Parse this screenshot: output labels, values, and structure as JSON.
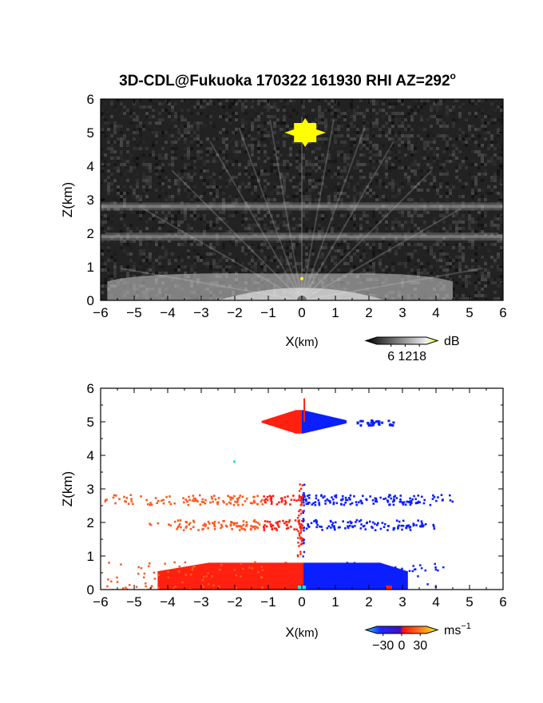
{
  "title": "3D-CDL@Fukuoka 170322 161930 RHI AZ=292",
  "title_superscript": "o",
  "colors": {
    "background": "#ffffff",
    "reflectivity_bg": "#222222",
    "strong_echo": "#ffff00",
    "approaching": "#0a1eff",
    "receding": "#ff2010",
    "receding_light": "#ff5a1e",
    "near_zero": "#19e6f0"
  },
  "chart_data": [
    {
      "type": "heatmap",
      "panel": "top",
      "quantity": "signal intensity",
      "xlabel_main": "X",
      "xlabel_unit": "(km)",
      "ylabel": "Z(km)",
      "xlim": [
        -6,
        6
      ],
      "ylim": [
        0,
        6
      ],
      "x_ticks": [
        "-6",
        "-5",
        "-4",
        "-3",
        "-2",
        "-1",
        "0",
        "1",
        "2",
        "3",
        "4",
        "5",
        "6"
      ],
      "y_ticks": [
        "0",
        "1",
        "2",
        "3",
        "4",
        "5",
        "6"
      ],
      "colorbar": {
        "unit": "dB",
        "ticks": [
          "6",
          "12",
          "18"
        ],
        "tick_values": [
          6,
          12,
          18
        ],
        "range": [
          0,
          21
        ]
      },
      "features": [
        {
          "name": "bright target",
          "x": 0.1,
          "z": 5.0,
          "value_db": 20
        },
        {
          "name": "cloud layer",
          "x_range": [
            -6,
            6
          ],
          "z": 2.8,
          "value_db": 8
        },
        {
          "name": "cloud layer",
          "x_range": [
            -6,
            6
          ],
          "z": 1.9,
          "value_db": 8
        },
        {
          "name": "boundary layer echo",
          "x_range": [
            -5.8,
            4.5
          ],
          "z_top": 0.8,
          "value_db": 14
        }
      ]
    },
    {
      "type": "heatmap",
      "panel": "bottom",
      "quantity": "radial velocity",
      "xlabel_main": "X",
      "xlabel_unit": "(km)",
      "ylabel": "Z(km)",
      "xlim": [
        -6,
        6
      ],
      "ylim": [
        0,
        6
      ],
      "x_ticks": [
        "-6",
        "-5",
        "-4",
        "-3",
        "-2",
        "-1",
        "0",
        "1",
        "2",
        "3",
        "4",
        "5",
        "6"
      ],
      "y_ticks": [
        "0",
        "1",
        "2",
        "3",
        "4",
        "5",
        "6"
      ],
      "colorbar": {
        "unit": "ms",
        "unit_exponent": "-1",
        "ticks": [
          "-30",
          "0",
          "30"
        ],
        "tick_values": [
          -30,
          0,
          30
        ],
        "range": [
          -40,
          40
        ]
      },
      "features": [
        {
          "name": "upper echo",
          "x_range": [
            -1.3,
            2.7
          ],
          "z": 5.0,
          "negative_x_velocity": "receding",
          "positive_x_velocity": "approaching"
        },
        {
          "name": "layer",
          "x_range": [
            -5.9,
            4.5
          ],
          "z": 2.7
        },
        {
          "name": "layer",
          "x_range": [
            -4.7,
            4.0
          ],
          "z": 1.95
        },
        {
          "name": "boundary layer",
          "x_range": [
            -5.9,
            4.2
          ],
          "z_top": 0.8
        }
      ]
    }
  ]
}
